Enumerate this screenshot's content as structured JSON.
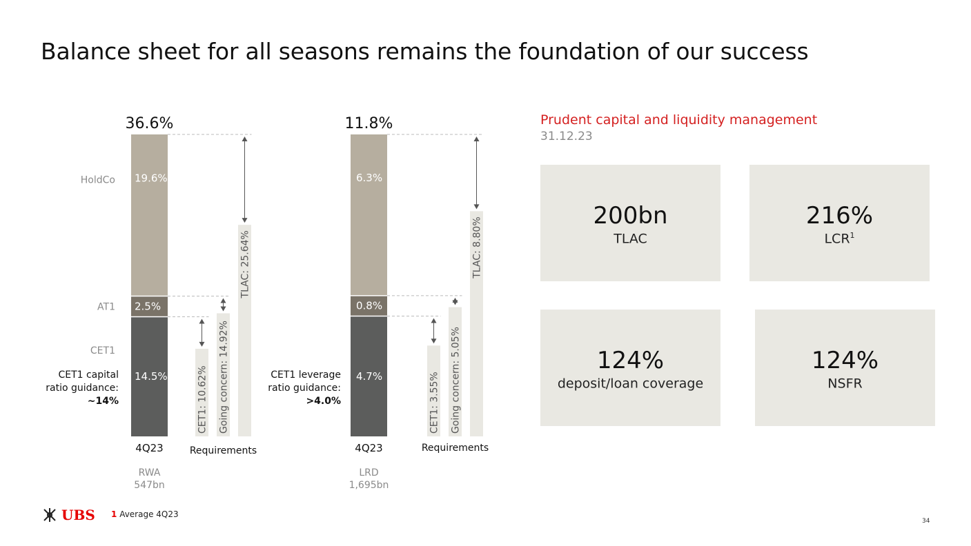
{
  "title": "Balance sheet for all seasons remains the foundation of our success",
  "chart_data": [
    {
      "type": "bar",
      "total_label": "36.6%",
      "segments": [
        {
          "name": "CET1",
          "value": 14.5,
          "label": "14.5%",
          "color": "#5c5d5c"
        },
        {
          "name": "AT1",
          "value": 2.5,
          "label": "2.5%",
          "color": "#7a7368"
        },
        {
          "name": "HoldCo",
          "value": 19.6,
          "label": "19.6%",
          "color": "#b6ae9f"
        }
      ],
      "category": "4Q23",
      "base_label": "RWA",
      "base_value": "547bn",
      "guidance_lines": [
        "CET1 capital",
        "ratio guidance:"
      ],
      "guidance_value": "~14%",
      "requirements_label": "Requirements",
      "requirements": [
        {
          "name": "CET1",
          "value": 10.62,
          "label": "CET1: 10.62%"
        },
        {
          "name": "Going concern",
          "value": 14.92,
          "label": "Going concern: 14.92%"
        },
        {
          "name": "TLAC",
          "value": 25.64,
          "label": "TLAC: 25.64%"
        }
      ]
    },
    {
      "type": "bar",
      "total_label": "11.8%",
      "segments": [
        {
          "name": "CET1",
          "value": 4.7,
          "label": "4.7%",
          "color": "#5c5d5c"
        },
        {
          "name": "AT1",
          "value": 0.8,
          "label": "0.8%",
          "color": "#7a7368"
        },
        {
          "name": "HoldCo",
          "value": 6.3,
          "label": "6.3%",
          "color": "#b6ae9f"
        }
      ],
      "category": "4Q23",
      "base_label": "LRD",
      "base_value": "1,695bn",
      "guidance_lines": [
        "CET1 leverage",
        "ratio guidance:"
      ],
      "guidance_value": ">4.0%",
      "requirements_label": "Requirements",
      "requirements": [
        {
          "name": "CET1",
          "value": 3.55,
          "label": "CET1: 3.55%"
        },
        {
          "name": "Going concern",
          "value": 5.05,
          "label": "Going concern: 5.05%"
        },
        {
          "name": "TLAC",
          "value": 8.8,
          "label": "TLAC: 8.80%"
        }
      ]
    }
  ],
  "kpi": {
    "heading": "Prudent capital and liquidity management",
    "date": "31.12.23",
    "tiles": [
      {
        "value": "200bn",
        "label": "TLAC",
        "sup": ""
      },
      {
        "value": "216%",
        "label": "LCR",
        "sup": "1"
      },
      {
        "value": "124%",
        "label": "deposit/loan coverage",
        "sup": ""
      },
      {
        "value": "124%",
        "label": "NSFR",
        "sup": ""
      }
    ]
  },
  "footer": {
    "logo_text": "UBS",
    "footnote_num": "1",
    "footnote_text": "Average 4Q23",
    "page": "34"
  },
  "colors": {
    "tile_bg": "#e9e8e2",
    "accent": "#d42020",
    "req_bar": "#e9e8e2",
    "label_gray": "#8a8a8a"
  }
}
